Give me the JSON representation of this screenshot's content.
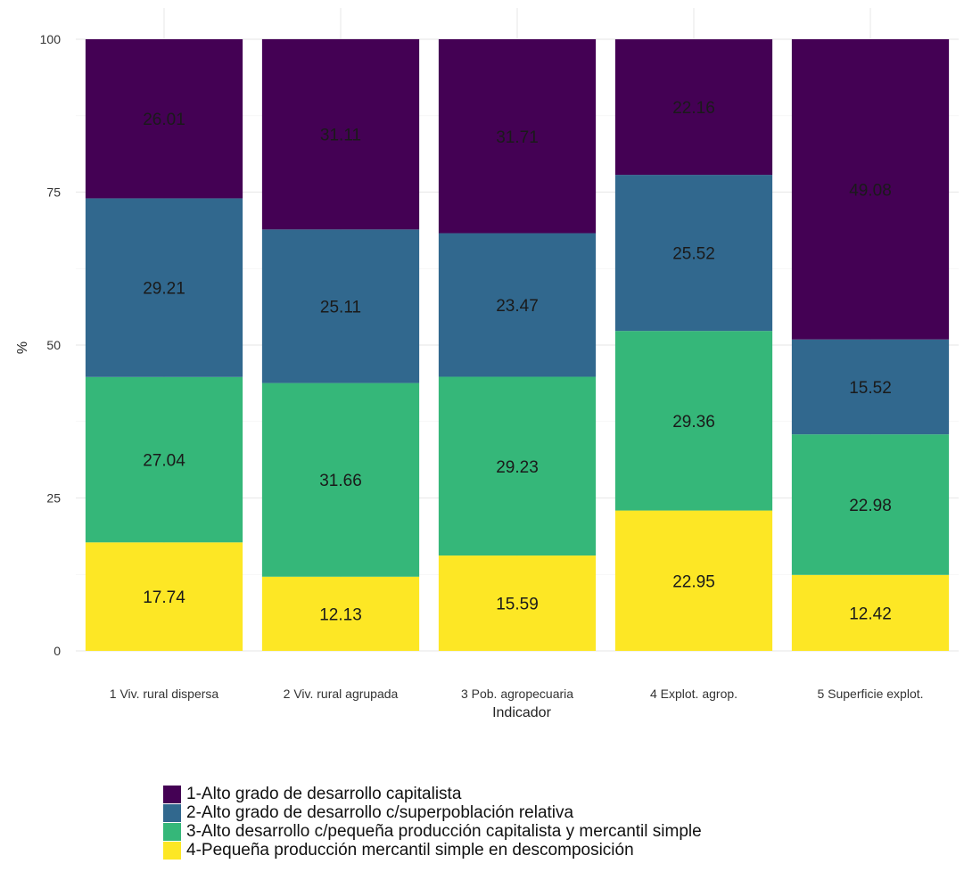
{
  "chart_data": {
    "type": "bar",
    "stacked": true,
    "categories": [
      "1 Viv. rural dispersa",
      "2 Viv. rural agrupada",
      "3 Pob. agropecuaria",
      "4 Explot. agrop.",
      "5 Superficie explot."
    ],
    "series": [
      {
        "name": "4-Pequeña producción mercantil simple en descomposición",
        "color": "#FDE725",
        "values": [
          17.74,
          12.13,
          15.59,
          22.95,
          12.42
        ]
      },
      {
        "name": "3-Alto desarrollo c/pequeña producción capitalista y mercantil simple",
        "color": "#35B779",
        "values": [
          27.04,
          31.66,
          29.23,
          29.36,
          22.98
        ]
      },
      {
        "name": "2-Alto grado de desarrollo c/superpoblación relativa",
        "color": "#31688E",
        "values": [
          29.21,
          25.11,
          23.47,
          25.52,
          15.52
        ]
      },
      {
        "name": "1-Alto grado de desarrollo capitalista",
        "color": "#440154",
        "values": [
          26.01,
          31.11,
          31.71,
          22.16,
          49.08
        ]
      }
    ],
    "xlabel": "Indicador",
    "ylabel": "%",
    "ylim": [
      0,
      100
    ],
    "yticks": [
      "0",
      "25",
      "50",
      "75",
      "100"
    ],
    "grid": true,
    "legend_position": "bottom",
    "legend_order": [
      "1-Alto grado de desarrollo capitalista",
      "2-Alto grado de desarrollo c/superpoblación relativa",
      "3-Alto desarrollo c/pequeña producción capitalista y mercantil simple",
      "4-Pequeña producción mercantil simple en descomposición"
    ]
  }
}
